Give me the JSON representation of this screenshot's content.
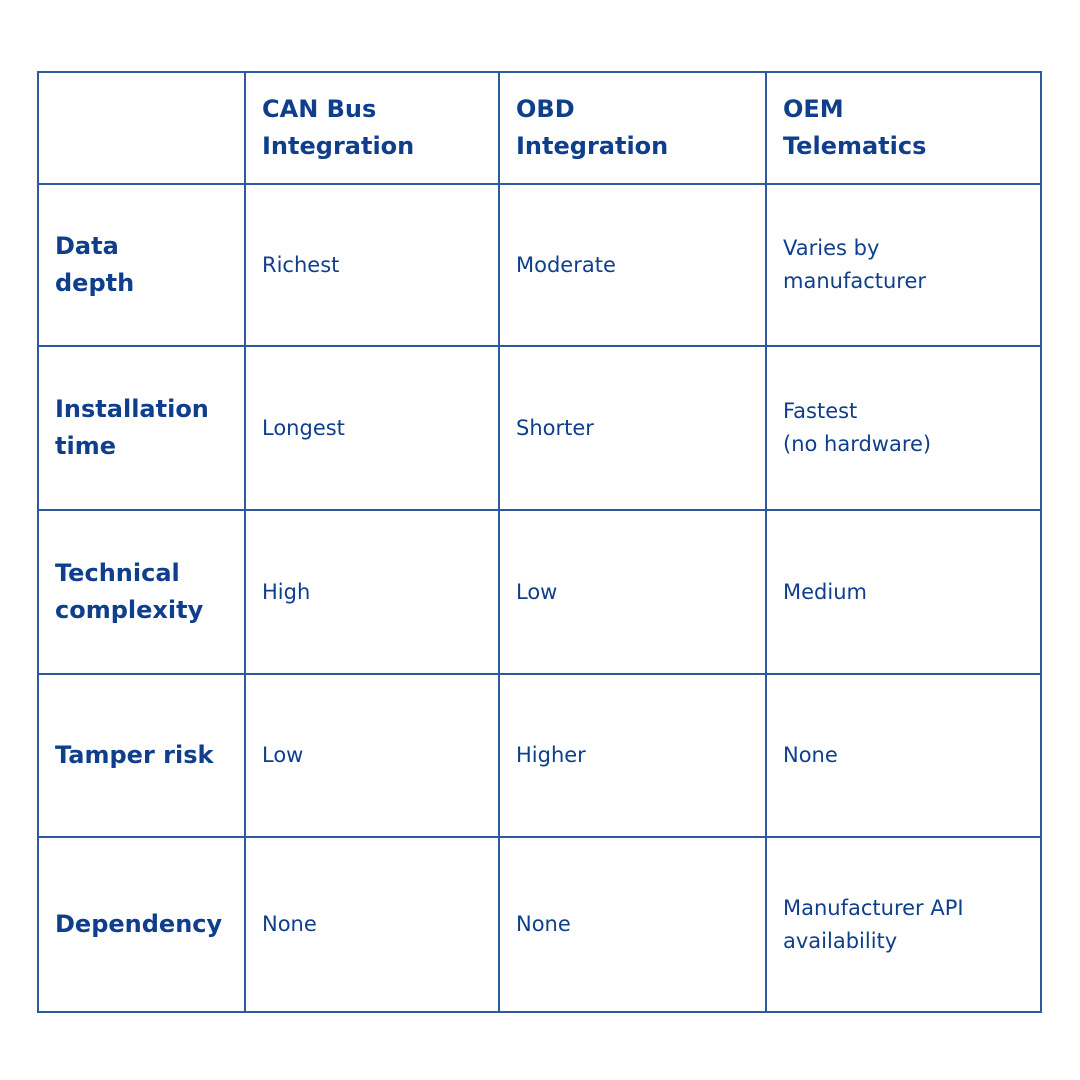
{
  "table": {
    "header": [
      [],
      [
        "CAN Bus",
        "Integration"
      ],
      [
        "OBD",
        "Integration"
      ],
      [
        "OEM",
        "Telematics"
      ]
    ],
    "rows": [
      [
        [
          "Data",
          "depth"
        ],
        [
          "Richest"
        ],
        [
          "Moderate"
        ],
        [
          "Varies by",
          "manufacturer"
        ]
      ],
      [
        [
          "Installation",
          "time"
        ],
        [
          "Longest"
        ],
        [
          "Shorter"
        ],
        [
          "Fastest",
          "(no hardware)"
        ]
      ],
      [
        [
          "Technical",
          "complexity"
        ],
        [
          "High"
        ],
        [
          "Low"
        ],
        [
          "Medium"
        ]
      ],
      [
        [
          "Tamper risk"
        ],
        [
          "Low"
        ],
        [
          "Higher"
        ],
        [
          "None"
        ]
      ],
      [
        [
          "Dependency"
        ],
        [
          "None"
        ],
        [
          "None"
        ],
        [
          "Manufacturer API",
          "availability"
        ]
      ]
    ]
  }
}
